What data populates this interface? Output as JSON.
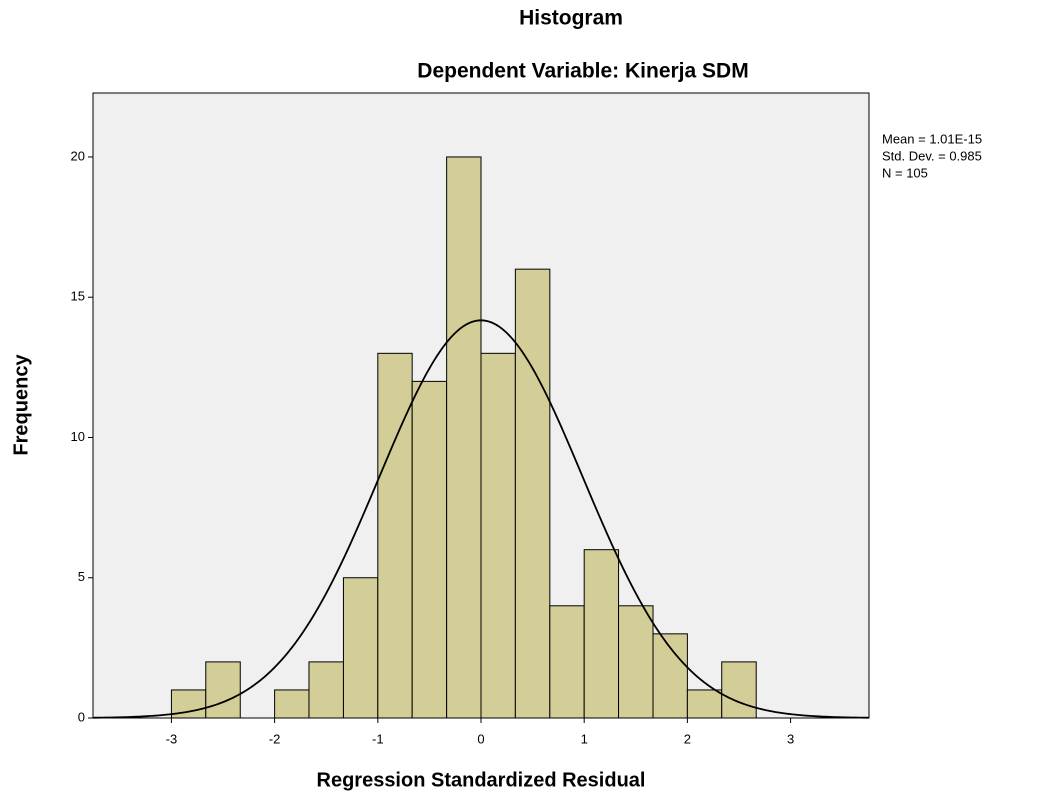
{
  "chart_data": {
    "type": "histogram",
    "title": "Histogram",
    "subtitle": "Dependent Variable: Kinerja SDM",
    "x_label": "Regression Standardized Residual",
    "y_label": "Frequency",
    "bins": [
      -3,
      -2.667,
      -2.333,
      -2,
      -1.667,
      -1.333,
      -1,
      -0.667,
      -0.333,
      0,
      0.333,
      0.667,
      1,
      1.333,
      1.667,
      2,
      2.333,
      2.667
    ],
    "values": [
      1,
      2,
      0,
      1,
      2,
      5,
      13,
      12,
      20,
      13,
      16,
      4,
      6,
      4,
      3,
      1,
      2
    ],
    "color": "#d3ce97",
    "xlim": [
      -3.76,
      3.76
    ],
    "xticks": [
      -3,
      -2,
      -1,
      0,
      1,
      2,
      3
    ],
    "ylim": [
      0,
      22.28
    ],
    "yticks": [
      0,
      5,
      10,
      15,
      20
    ],
    "stats": {
      "mean": {
        "value": 1.01e-15,
        "label": "Mean = 1.01E-15"
      },
      "sd": {
        "value": 0.985,
        "label": "Std. Dev. = 0.985"
      },
      "n": {
        "value": 105,
        "label": "N = 105"
      }
    }
  }
}
